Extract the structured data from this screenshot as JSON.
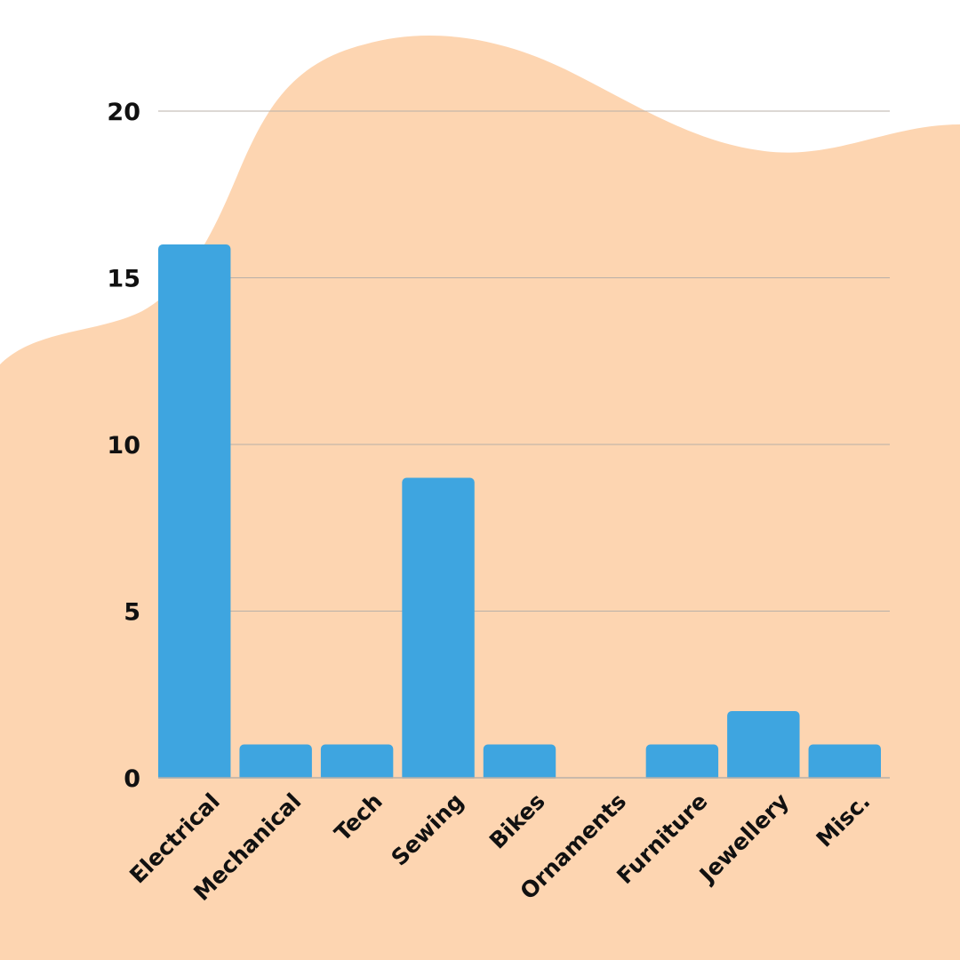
{
  "chart_data": {
    "type": "bar",
    "title": "",
    "xlabel": "",
    "ylabel": "",
    "categories": [
      "Electrical",
      "Mechanical",
      "Tech",
      "Sewing",
      "Bikes",
      "Ornaments",
      "Furniture",
      "Jewellery",
      "Misc."
    ],
    "values": [
      16,
      1,
      1,
      9,
      1,
      0,
      1,
      2,
      1
    ],
    "ylim": [
      0,
      20
    ],
    "yticks": [
      "0",
      "5",
      "10",
      "15",
      "20"
    ],
    "grid": true,
    "legend": "none"
  },
  "colors": {
    "background": "#ffffff",
    "blob": "#fdd5b1",
    "bar": "#3ea5e0",
    "gridline": "#b8b0a8",
    "text": "#111111"
  }
}
